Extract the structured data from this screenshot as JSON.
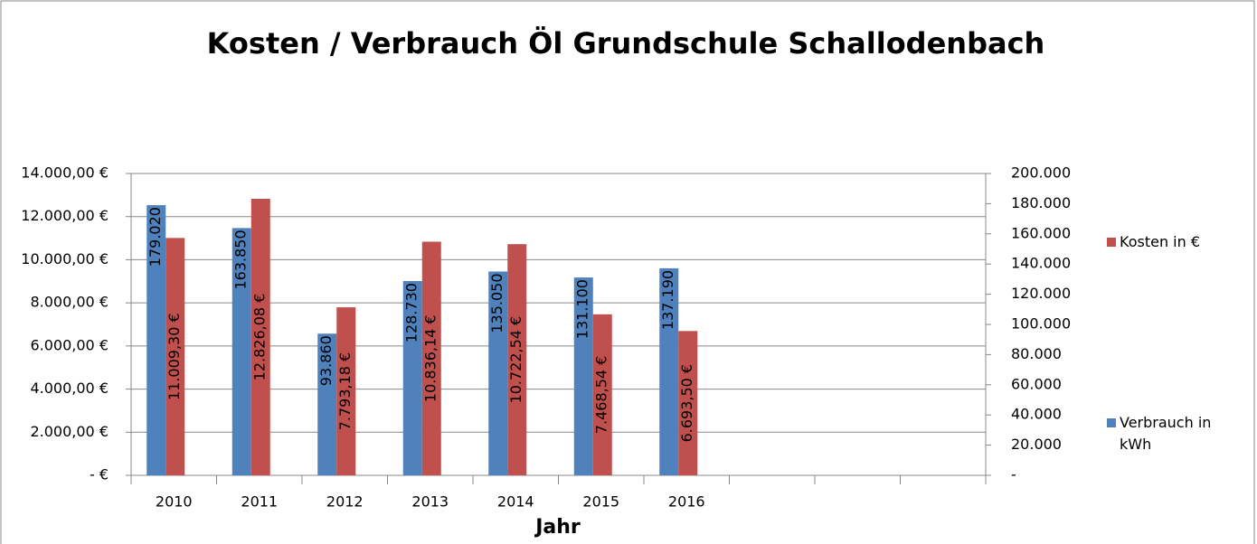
{
  "chart_data": {
    "type": "bar",
    "title": "Kosten / Verbrauch Öl Grundschule Schallodenbach",
    "x_label": "Jahr",
    "categories": [
      "2010",
      "2011",
      "2012",
      "2013",
      "2014",
      "2015",
      "2016",
      null,
      null,
      null
    ],
    "series": [
      {
        "name": "Verbrauch in kWh",
        "color": "#4f81bd",
        "axis": "y2",
        "values": [
          179020,
          163850,
          93860,
          128730,
          135050,
          131100,
          137190,
          null,
          null,
          null
        ],
        "value_labels": [
          "179.020",
          "163.850",
          "93.860",
          "128.730",
          "135.050",
          "131.100",
          "137.190",
          null,
          null,
          null
        ]
      },
      {
        "name": "Kosten in €",
        "color": "#c0504d",
        "axis": "y",
        "values": [
          11009.3,
          12826.08,
          7793.18,
          10836.14,
          10722.54,
          7468.54,
          6693.5,
          null,
          null,
          null
        ],
        "value_labels": [
          "11.009,30 €",
          "12.826,08 €",
          "7.793,18 €",
          "10.836,14 €",
          "10.722,54 €",
          "7.468,54 €",
          "6.693,50 €",
          null,
          null,
          null
        ]
      }
    ],
    "ylim": [
      0,
      14000
    ],
    "yticks": [
      {
        "value": 0,
        "label": "-  €"
      },
      {
        "value": 2000,
        "label": "2.000,00 €"
      },
      {
        "value": 4000,
        "label": "4.000,00 €"
      },
      {
        "value": 6000,
        "label": "6.000,00 €"
      },
      {
        "value": 8000,
        "label": "8.000,00 €"
      },
      {
        "value": 10000,
        "label": "10.000,00 €"
      },
      {
        "value": 12000,
        "label": "12.000,00 €"
      },
      {
        "value": 14000,
        "label": "14.000,00 €"
      }
    ],
    "y2lim": [
      0,
      200000
    ],
    "y2ticks": [
      {
        "value": 0,
        "label": "-"
      },
      {
        "value": 20000,
        "label": "20.000"
      },
      {
        "value": 40000,
        "label": "40.000"
      },
      {
        "value": 60000,
        "label": "60.000"
      },
      {
        "value": 80000,
        "label": "80.000"
      },
      {
        "value": 100000,
        "label": "100.000"
      },
      {
        "value": 120000,
        "label": "120.000"
      },
      {
        "value": 140000,
        "label": "140.000"
      },
      {
        "value": 160000,
        "label": "160.000"
      },
      {
        "value": 180000,
        "label": "180.000"
      },
      {
        "value": 200000,
        "label": "200.000"
      }
    ],
    "grid": true,
    "legend": "right"
  }
}
